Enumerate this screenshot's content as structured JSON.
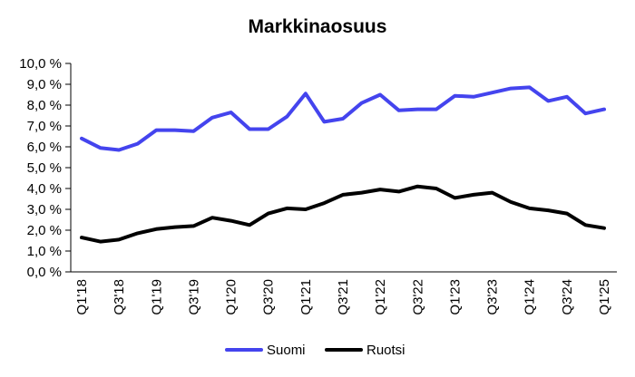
{
  "chart_data": {
    "type": "line",
    "title": "Markkinaosuus",
    "xlabel": "",
    "ylabel": "",
    "x": [
      "Q1'18",
      "Q2'18",
      "Q3'18",
      "Q4'18",
      "Q1'19",
      "Q2'19",
      "Q3'19",
      "Q4'19",
      "Q1'20",
      "Q2'20",
      "Q3'20",
      "Q4'20",
      "Q1'21",
      "Q2'21",
      "Q3'21",
      "Q4'21",
      "Q1'22",
      "Q2'22",
      "Q3'22",
      "Q4'22",
      "Q1'23",
      "Q2'23",
      "Q3'23",
      "Q4'23",
      "Q1'24",
      "Q2'24",
      "Q3'24",
      "Q4'24",
      "Q1'25"
    ],
    "x_tick_labels": [
      "Q1'18",
      "Q3'18",
      "Q1'19",
      "Q3'19",
      "Q1'20",
      "Q3'20",
      "Q1'21",
      "Q3'21",
      "Q1'22",
      "Q3'22",
      "Q1'23",
      "Q3'23",
      "Q1'24",
      "Q3'24",
      "Q1'25"
    ],
    "y_ticks": [
      "0,0 %",
      "1,0 %",
      "2,0 %",
      "3,0 %",
      "4,0 %",
      "5,0 %",
      "6,0 %",
      "7,0 %",
      "8,0 %",
      "9,0 %",
      "10,0 %"
    ],
    "ylim": [
      0,
      10
    ],
    "grid": false,
    "legend_position": "bottom",
    "series": [
      {
        "name": "Suomi",
        "color": "#4444ee",
        "values": [
          6.4,
          5.95,
          5.85,
          6.15,
          6.8,
          6.8,
          6.75,
          7.4,
          7.65,
          6.85,
          6.85,
          7.45,
          8.55,
          7.2,
          7.35,
          8.1,
          8.5,
          7.75,
          7.8,
          7.8,
          8.45,
          8.4,
          8.6,
          8.8,
          8.85,
          8.2,
          8.4,
          7.6,
          7.8
        ]
      },
      {
        "name": "Ruotsi",
        "color": "#000000",
        "values": [
          1.65,
          1.45,
          1.55,
          1.85,
          2.05,
          2.15,
          2.2,
          2.6,
          2.45,
          2.25,
          2.8,
          3.05,
          3.0,
          3.3,
          3.7,
          3.8,
          3.95,
          3.85,
          4.1,
          4.0,
          3.55,
          3.7,
          3.8,
          3.35,
          3.05,
          2.95,
          2.8,
          2.25,
          2.1
        ]
      }
    ]
  }
}
